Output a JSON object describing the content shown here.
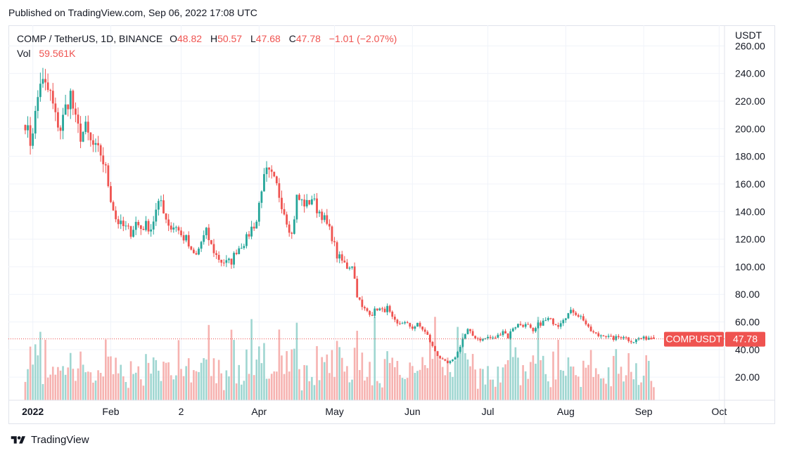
{
  "header": {
    "published": "Published on TradingView.com, Sep 06, 2022 17:08 UTC"
  },
  "legend": {
    "symbol": "COMP / TetherUS, 1D, BINANCE",
    "o_label": "O",
    "o": "48.82",
    "h_label": "H",
    "h": "50.57",
    "l_label": "L",
    "l": "47.68",
    "c_label": "C",
    "c": "47.78",
    "change": "−1.01 (−2.07%)",
    "vol_label": "Vol",
    "vol": "59.561K"
  },
  "price_axis": {
    "currency": "USDT",
    "last_symbol": "COMPUSDT",
    "last_price": "47.78"
  },
  "footer": {
    "brand": "TradingView"
  },
  "colors": {
    "up": "#26a69a",
    "down": "#ef5350",
    "up_vol": "#9fd6d1",
    "down_vol": "#f6b2b0",
    "grid": "#f0f3fa",
    "text": "#131722"
  },
  "chart_data": {
    "type": "candlestick",
    "title": "COMP / TetherUS, 1D, BINANCE",
    "ylim": [
      0,
      265
    ],
    "y_ticks": [
      "260.00",
      "240.00",
      "220.00",
      "200.00",
      "180.00",
      "160.00",
      "140.00",
      "120.00",
      "100.00",
      "80.00",
      "60.00",
      "40.00",
      "20.00"
    ],
    "y_tick_values": [
      260,
      240,
      220,
      200,
      180,
      160,
      140,
      120,
      100,
      80,
      60,
      40,
      20
    ],
    "x_labels": [
      {
        "label": "2022",
        "day": 15,
        "bold": true
      },
      {
        "label": "Feb",
        "day": 46
      },
      {
        "label": "2",
        "day": 74
      },
      {
        "label": "Apr",
        "day": 105
      },
      {
        "label": "May",
        "day": 135
      },
      {
        "label": "Jun",
        "day": 166
      },
      {
        "label": "Jul",
        "day": 196
      },
      {
        "label": "Aug",
        "day": 227
      },
      {
        "label": "Sep",
        "day": 258
      },
      {
        "label": "Oct",
        "day": 288
      }
    ],
    "first_day": 12,
    "last_day": 262,
    "close_anchors": [
      [
        12,
        205
      ],
      [
        14,
        190
      ],
      [
        16,
        210
      ],
      [
        18,
        235
      ],
      [
        20,
        230
      ],
      [
        22,
        225
      ],
      [
        24,
        208
      ],
      [
        26,
        200
      ],
      [
        28,
        215
      ],
      [
        30,
        225
      ],
      [
        32,
        205
      ],
      [
        34,
        195
      ],
      [
        36,
        200
      ],
      [
        38,
        190
      ],
      [
        40,
        185
      ],
      [
        42,
        182
      ],
      [
        44,
        170
      ],
      [
        46,
        150
      ],
      [
        48,
        135
      ],
      [
        50,
        130
      ],
      [
        52,
        128
      ],
      [
        54,
        125
      ],
      [
        56,
        132
      ],
      [
        58,
        128
      ],
      [
        60,
        130
      ],
      [
        62,
        128
      ],
      [
        64,
        140
      ],
      [
        66,
        148
      ],
      [
        68,
        135
      ],
      [
        70,
        128
      ],
      [
        72,
        130
      ],
      [
        74,
        122
      ],
      [
        76,
        120
      ],
      [
        78,
        110
      ],
      [
        80,
        108
      ],
      [
        82,
        118
      ],
      [
        84,
        125
      ],
      [
        86,
        115
      ],
      [
        88,
        108
      ],
      [
        90,
        104
      ],
      [
        92,
        103
      ],
      [
        94,
        104
      ],
      [
        96,
        112
      ],
      [
        98,
        116
      ],
      [
        100,
        120
      ],
      [
        102,
        128
      ],
      [
        104,
        133
      ],
      [
        106,
        158
      ],
      [
        108,
        168
      ],
      [
        110,
        165
      ],
      [
        112,
        158
      ],
      [
        114,
        146
      ],
      [
        116,
        134
      ],
      [
        118,
        123
      ],
      [
        120,
        150
      ],
      [
        122,
        147
      ],
      [
        124,
        145
      ],
      [
        126,
        150
      ],
      [
        128,
        142
      ],
      [
        130,
        138
      ],
      [
        132,
        130
      ],
      [
        134,
        122
      ],
      [
        136,
        108
      ],
      [
        138,
        104
      ],
      [
        140,
        100
      ],
      [
        142,
        102
      ],
      [
        144,
        80
      ],
      [
        146,
        70
      ],
      [
        148,
        68
      ],
      [
        150,
        66
      ],
      [
        152,
        70
      ],
      [
        154,
        68
      ],
      [
        156,
        70
      ],
      [
        158,
        62
      ],
      [
        160,
        58
      ],
      [
        162,
        60
      ],
      [
        164,
        58
      ],
      [
        166,
        56
      ],
      [
        168,
        58
      ],
      [
        170,
        55
      ],
      [
        172,
        50
      ],
      [
        174,
        42
      ],
      [
        176,
        36
      ],
      [
        178,
        32
      ],
      [
        180,
        30
      ],
      [
        182,
        32
      ],
      [
        184,
        38
      ],
      [
        186,
        48
      ],
      [
        188,
        54
      ],
      [
        190,
        50
      ],
      [
        192,
        48
      ],
      [
        194,
        47
      ],
      [
        196,
        49
      ],
      [
        198,
        48
      ],
      [
        200,
        50
      ],
      [
        202,
        54
      ],
      [
        204,
        49
      ],
      [
        206,
        56
      ],
      [
        208,
        58
      ],
      [
        210,
        58
      ],
      [
        212,
        57
      ],
      [
        214,
        52
      ],
      [
        216,
        58
      ],
      [
        218,
        60
      ],
      [
        220,
        62
      ],
      [
        222,
        60
      ],
      [
        224,
        58
      ],
      [
        226,
        63
      ],
      [
        228,
        66
      ],
      [
        230,
        68
      ],
      [
        232,
        65
      ],
      [
        234,
        62
      ],
      [
        236,
        55
      ],
      [
        238,
        52
      ],
      [
        240,
        50
      ],
      [
        242,
        51
      ],
      [
        244,
        49
      ],
      [
        246,
        48
      ],
      [
        248,
        49
      ],
      [
        250,
        50
      ],
      [
        252,
        47
      ],
      [
        254,
        46
      ],
      [
        256,
        48
      ],
      [
        258,
        48
      ],
      [
        260,
        48.8
      ],
      [
        262,
        47.78
      ]
    ],
    "volume_ylim": [
      0,
      400000
    ],
    "last": {
      "open": 48.82,
      "high": 50.57,
      "low": 47.68,
      "close": 47.78,
      "volume": 59561
    }
  }
}
